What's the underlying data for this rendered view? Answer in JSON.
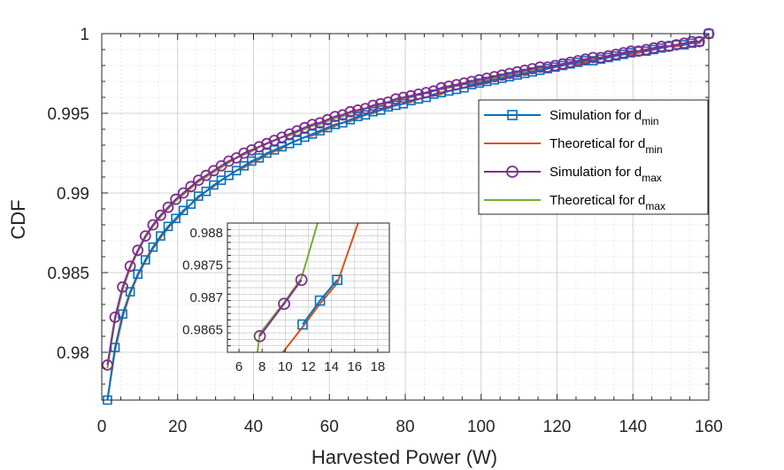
{
  "chart_data": {
    "type": "line",
    "xlabel": "Harvested Power (W)",
    "ylabel": "CDF",
    "xlim": [
      0,
      160
    ],
    "ylim": [
      0.977,
      1.0
    ],
    "xticks": [
      "0",
      "20",
      "40",
      "60",
      "80",
      "100",
      "120",
      "140",
      "160"
    ],
    "yticks": [
      "0.98",
      "0.985",
      "0.99",
      "0.995",
      "1"
    ],
    "grid": true,
    "minor_grid": true,
    "legend_position": "right",
    "series": [
      {
        "name": "Simulation for d_min",
        "legend_main": "Simulation for d",
        "legend_sub": "min",
        "color": "#0072BD",
        "marker": "square",
        "x": [
          1.5,
          3.5,
          5.5,
          7.5,
          9.5,
          11.5,
          13.5,
          15.5,
          17.5,
          19.5,
          21.5,
          23.5,
          25.5,
          27.5,
          29.5,
          31.5,
          33.5,
          35.5,
          37.5,
          39.5,
          41.5,
          43.5,
          45.5,
          47.5,
          49.5,
          51.5,
          53.5,
          55.5,
          57.5,
          59.5,
          61.5,
          63.5,
          65.5,
          67.5,
          69.5,
          71.5,
          73.5,
          75.5,
          77.5,
          79.5,
          81.5,
          83.5,
          85.5,
          87.5,
          89.5,
          91.5,
          93.5,
          95.5,
          97.5,
          99.5,
          101.5,
          103.5,
          105.5,
          107.5,
          109.5,
          111.5,
          113.5,
          115.5,
          117.5,
          119.5,
          121.5,
          123.5,
          125.5,
          127.5,
          129.5,
          131.5,
          133.5,
          135.5,
          137.5,
          139.5,
          141.5,
          143.5,
          145.5,
          147.5,
          149.5,
          151.5,
          153.5,
          155.5,
          157.5,
          160
        ],
        "y": [
          0.977,
          0.9803,
          0.9824,
          0.9838,
          0.9849,
          0.9858,
          0.9866,
          0.9873,
          0.9879,
          0.9884,
          0.9889,
          0.9893,
          0.9898,
          0.9901,
          0.9905,
          0.9908,
          0.9911,
          0.9914,
          0.9917,
          0.992,
          0.9922,
          0.9925,
          0.9927,
          0.9929,
          0.9931,
          0.9933,
          0.9935,
          0.9937,
          0.9939,
          0.9941,
          0.9943,
          0.9944,
          0.9946,
          0.9948,
          0.9949,
          0.9951,
          0.9952,
          0.9954,
          0.9955,
          0.9956,
          0.9958,
          0.9959,
          0.996,
          0.9962,
          0.9963,
          0.9964,
          0.9965,
          0.9966,
          0.9968,
          0.9969,
          0.997,
          0.9971,
          0.9972,
          0.9973,
          0.9974,
          0.9975,
          0.9976,
          0.9977,
          0.9978,
          0.9979,
          0.998,
          0.9981,
          0.9982,
          0.9983,
          0.9983,
          0.9984,
          0.9985,
          0.9986,
          0.9987,
          0.9988,
          0.9989,
          0.9989,
          0.999,
          0.9991,
          0.9992,
          0.9993,
          0.9993,
          0.9994,
          0.9995,
          1.0
        ]
      },
      {
        "name": "Theoretical for d_min",
        "legend_main": "Theoretical for d",
        "legend_sub": "min",
        "color": "#D95319",
        "marker": "none",
        "x": [
          1.5,
          3.5,
          5.5,
          7.5,
          9.5,
          11.5,
          13.5,
          15.5,
          17.5,
          19.5,
          21.5,
          23.5,
          25.5,
          27.5,
          29.5,
          31.5,
          33.5,
          35.5,
          37.5,
          39.5,
          41.5,
          43.5,
          45.5,
          47.5,
          49.5,
          51.5,
          53.5,
          55.5,
          57.5,
          59.5,
          61.5,
          63.5,
          65.5,
          67.5,
          69.5,
          71.5,
          73.5,
          75.5,
          77.5,
          79.5,
          81.5,
          83.5,
          85.5,
          87.5,
          89.5,
          91.5,
          93.5,
          95.5,
          97.5,
          99.5,
          101.5,
          103.5,
          105.5,
          107.5,
          109.5,
          111.5,
          113.5,
          115.5,
          117.5,
          119.5,
          121.5,
          123.5,
          125.5,
          127.5,
          129.5,
          131.5,
          133.5,
          135.5,
          137.5,
          139.5,
          141.5,
          143.5,
          145.5,
          147.5,
          149.5,
          151.5,
          153.5,
          155.5,
          157.5,
          160
        ],
        "y": [
          0.9768,
          0.9801,
          0.9822,
          0.9837,
          0.9848,
          0.9857,
          0.9865,
          0.9872,
          0.9878,
          0.9883,
          0.9888,
          0.9893,
          0.9897,
          0.9901,
          0.9904,
          0.9908,
          0.9911,
          0.9914,
          0.9916,
          0.9919,
          0.9921,
          0.9924,
          0.9926,
          0.9928,
          0.9931,
          0.9933,
          0.9935,
          0.9936,
          0.9938,
          0.994,
          0.9942,
          0.9944,
          0.9945,
          0.9947,
          0.9949,
          0.995,
          0.9952,
          0.9953,
          0.9955,
          0.9956,
          0.9957,
          0.9959,
          0.996,
          0.9961,
          0.9962,
          0.9964,
          0.9965,
          0.9966,
          0.9967,
          0.9968,
          0.9969,
          0.9971,
          0.9972,
          0.9973,
          0.9974,
          0.9975,
          0.9976,
          0.9977,
          0.9978,
          0.9979,
          0.998,
          0.9981,
          0.9981,
          0.9982,
          0.9983,
          0.9984,
          0.9985,
          0.9986,
          0.9987,
          0.9987,
          0.9988,
          0.9989,
          0.999,
          0.9991,
          0.9992,
          0.9992,
          0.9993,
          0.9994,
          0.9994,
          1.0
        ]
      },
      {
        "name": "Simulation for d_max",
        "legend_main": "Simulation for d",
        "legend_sub": "max",
        "color": "#7E2F8E",
        "marker": "circle",
        "x": [
          1.5,
          3.5,
          5.5,
          7.5,
          9.5,
          11.5,
          13.5,
          15.5,
          17.5,
          19.5,
          21.5,
          23.5,
          25.5,
          27.5,
          29.5,
          31.5,
          33.5,
          35.5,
          37.5,
          39.5,
          41.5,
          43.5,
          45.5,
          47.5,
          49.5,
          51.5,
          53.5,
          55.5,
          57.5,
          59.5,
          61.5,
          63.5,
          65.5,
          67.5,
          69.5,
          71.5,
          73.5,
          75.5,
          77.5,
          79.5,
          81.5,
          83.5,
          85.5,
          87.5,
          89.5,
          91.5,
          93.5,
          95.5,
          97.5,
          99.5,
          101.5,
          103.5,
          105.5,
          107.5,
          109.5,
          111.5,
          113.5,
          115.5,
          117.5,
          119.5,
          121.5,
          123.5,
          125.5,
          127.5,
          129.5,
          131.5,
          133.5,
          135.5,
          137.5,
          139.5,
          141.5,
          143.5,
          145.5,
          147.5,
          149.5,
          151.5,
          153.5,
          155.5,
          157.5,
          160
        ],
        "y": [
          0.9792,
          0.9822,
          0.9841,
          0.9854,
          0.9864,
          0.9873,
          0.988,
          0.9886,
          0.9891,
          0.9896,
          0.99,
          0.9904,
          0.9908,
          0.9911,
          0.9914,
          0.9917,
          0.992,
          0.9922,
          0.9925,
          0.9927,
          0.9929,
          0.9931,
          0.9933,
          0.9935,
          0.9937,
          0.9939,
          0.9941,
          0.9943,
          0.9944,
          0.9946,
          0.9948,
          0.9949,
          0.9951,
          0.9952,
          0.9953,
          0.9955,
          0.9956,
          0.9957,
          0.9959,
          0.996,
          0.9961,
          0.9962,
          0.9963,
          0.9964,
          0.9966,
          0.9967,
          0.9968,
          0.9969,
          0.997,
          0.9971,
          0.9972,
          0.9973,
          0.9974,
          0.9975,
          0.9976,
          0.9977,
          0.9978,
          0.9979,
          0.9979,
          0.998,
          0.9981,
          0.9982,
          0.9983,
          0.9984,
          0.9985,
          0.9985,
          0.9986,
          0.9987,
          0.9988,
          0.9989,
          0.9989,
          0.999,
          0.9991,
          0.9992,
          0.9992,
          0.9993,
          0.9994,
          0.9995,
          0.9995,
          1.0
        ]
      },
      {
        "name": "Theoretical for d_max",
        "legend_main": "Theoretical for d",
        "legend_sub": "max",
        "color": "#77AC30",
        "marker": "none",
        "x": [
          1.5,
          3.5,
          5.5,
          7.5,
          9.5,
          11.5,
          13.5,
          15.5,
          17.5,
          19.5,
          21.5,
          23.5,
          25.5,
          27.5,
          29.5,
          31.5,
          33.5,
          35.5,
          37.5,
          39.5,
          41.5,
          43.5,
          45.5,
          47.5,
          49.5,
          51.5,
          53.5,
          55.5,
          57.5,
          59.5,
          61.5,
          63.5,
          65.5,
          67.5,
          69.5,
          71.5,
          73.5,
          75.5,
          77.5,
          79.5,
          81.5,
          83.5,
          85.5,
          87.5,
          89.5,
          91.5,
          93.5,
          95.5,
          97.5,
          99.5,
          101.5,
          103.5,
          105.5,
          107.5,
          109.5,
          111.5,
          113.5,
          115.5,
          117.5,
          119.5,
          121.5,
          123.5,
          125.5,
          127.5,
          129.5,
          131.5,
          133.5,
          135.5,
          137.5,
          139.5,
          141.5,
          143.5,
          145.5,
          147.5,
          149.5,
          151.5,
          153.5,
          155.5,
          157.5,
          160
        ],
        "y": [
          0.979,
          0.982,
          0.9839,
          0.9853,
          0.9863,
          0.9872,
          0.9879,
          0.9885,
          0.989,
          0.9895,
          0.9899,
          0.9903,
          0.9907,
          0.991,
          0.9913,
          0.9916,
          0.9919,
          0.9922,
          0.9924,
          0.9926,
          0.9929,
          0.9931,
          0.9933,
          0.9935,
          0.9936,
          0.9938,
          0.994,
          0.9942,
          0.9943,
          0.9945,
          0.9947,
          0.9948,
          0.995,
          0.9951,
          0.9953,
          0.9954,
          0.9955,
          0.9957,
          0.9958,
          0.9959,
          0.996,
          0.9962,
          0.9963,
          0.9964,
          0.9965,
          0.9966,
          0.9967,
          0.9968,
          0.9969,
          0.997,
          0.9971,
          0.9972,
          0.9973,
          0.9974,
          0.9975,
          0.9976,
          0.9977,
          0.9978,
          0.9979,
          0.998,
          0.9981,
          0.9982,
          0.9982,
          0.9983,
          0.9984,
          0.9985,
          0.9986,
          0.9986,
          0.9987,
          0.9988,
          0.9989,
          0.999,
          0.999,
          0.9991,
          0.9992,
          0.9993,
          0.9993,
          0.9994,
          0.9995,
          1.0
        ]
      }
    ],
    "inset": {
      "xlim": [
        5,
        19
      ],
      "ylim": [
        0.98615,
        0.98815
      ],
      "xticks": [
        "6",
        "8",
        "10",
        "12",
        "14",
        "16",
        "18"
      ],
      "yticks": [
        "0.9865",
        "0.987",
        "0.9875",
        "0.988"
      ],
      "series": [
        {
          "name": "Simulation for d_min",
          "color": "#0072BD",
          "marker": "square",
          "x": [
            11.5,
            13.0,
            14.5
          ],
          "y": [
            0.98658,
            0.98695,
            0.98727
          ]
        },
        {
          "name": "Theoretical for d_min",
          "color": "#D95319",
          "marker": "none",
          "x": [
            9.8,
            11.5,
            13.0,
            14.5,
            16.3
          ],
          "y": [
            0.98615,
            0.98654,
            0.9869,
            0.98722,
            0.98815
          ]
        },
        {
          "name": "Simulation for d_max",
          "color": "#7E2F8E",
          "marker": "circle",
          "x": [
            7.8,
            9.9,
            11.4
          ],
          "y": [
            0.9864,
            0.9869,
            0.98727
          ]
        },
        {
          "name": "Theoretical for d_max",
          "color": "#77AC30",
          "marker": "none",
          "x": [
            7.6,
            7.8,
            9.9,
            11.4,
            12.8
          ],
          "y": [
            0.98615,
            0.98644,
            0.98692,
            0.9873,
            0.98815
          ]
        }
      ]
    }
  }
}
